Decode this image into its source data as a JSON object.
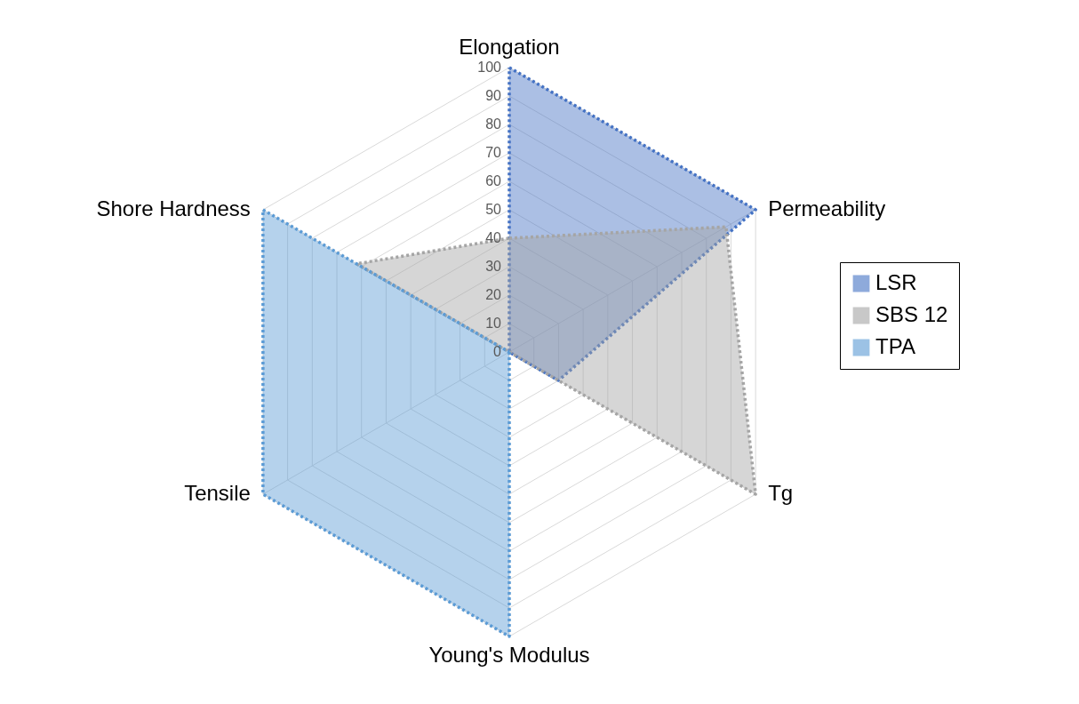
{
  "chart_data": {
    "type": "radar",
    "categories": [
      "Elongation",
      "Permeability",
      "Tg",
      "Young's Modulus",
      "Tensile",
      "Shore Hardness"
    ],
    "series": [
      {
        "name": "LSR",
        "color": "#4472c4",
        "values": [
          100,
          100,
          20,
          0,
          0,
          0
        ]
      },
      {
        "name": "SBS 12",
        "color": "#a5a5a5",
        "values": [
          40,
          88,
          100,
          0,
          0,
          62
        ]
      },
      {
        "name": "TPA",
        "color": "#5b9bd5",
        "values": [
          0,
          0,
          0,
          100,
          100,
          100
        ]
      }
    ],
    "ylim": [
      0,
      100
    ],
    "yticks": [
      0,
      10,
      20,
      30,
      40,
      50,
      60,
      70,
      80,
      90,
      100
    ],
    "grid": true,
    "legend": "right",
    "line_style": "dotted"
  }
}
